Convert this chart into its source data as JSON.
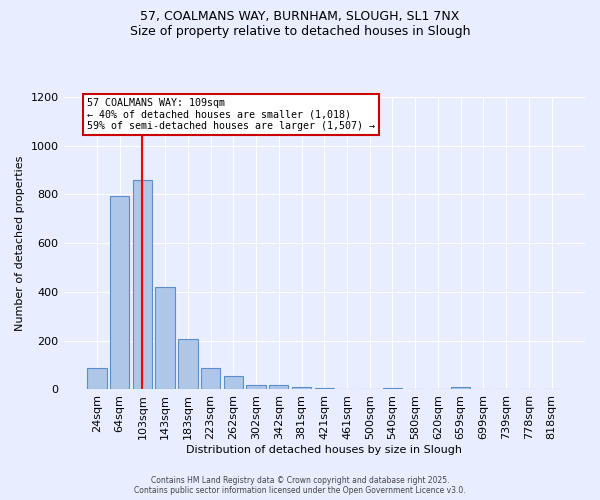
{
  "title_line1": "57, COALMANS WAY, BURNHAM, SLOUGH, SL1 7NX",
  "title_line2": "Size of property relative to detached houses in Slough",
  "xlabel": "Distribution of detached houses by size in Slough",
  "ylabel": "Number of detached properties",
  "categories": [
    "24sqm",
    "64sqm",
    "103sqm",
    "143sqm",
    "183sqm",
    "223sqm",
    "262sqm",
    "302sqm",
    "342sqm",
    "381sqm",
    "421sqm",
    "461sqm",
    "500sqm",
    "540sqm",
    "580sqm",
    "620sqm",
    "659sqm",
    "699sqm",
    "739sqm",
    "778sqm",
    "818sqm"
  ],
  "values": [
    90,
    795,
    860,
    420,
    205,
    90,
    55,
    20,
    20,
    10,
    5,
    2,
    0,
    8,
    0,
    0,
    10,
    0,
    0,
    0,
    0
  ],
  "bar_color": "#aec6e8",
  "bar_edge_color": "#5b8fc9",
  "red_line_x": 2.0,
  "annotation_title": "57 COALMANS WAY: 109sqm",
  "annotation_line1": "← 40% of detached houses are smaller (1,018)",
  "annotation_line2": "59% of semi-detached houses are larger (1,507) →",
  "annotation_box_color": "#ffffff",
  "annotation_box_edge_color": "#cc0000",
  "ylim": [
    0,
    1200
  ],
  "yticks": [
    0,
    200,
    400,
    600,
    800,
    1000,
    1200
  ],
  "background_color": "#e8eeff",
  "grid_color": "#ffffff",
  "footer_line1": "Contains HM Land Registry data © Crown copyright and database right 2025.",
  "footer_line2": "Contains public sector information licensed under the Open Government Licence v3.0."
}
